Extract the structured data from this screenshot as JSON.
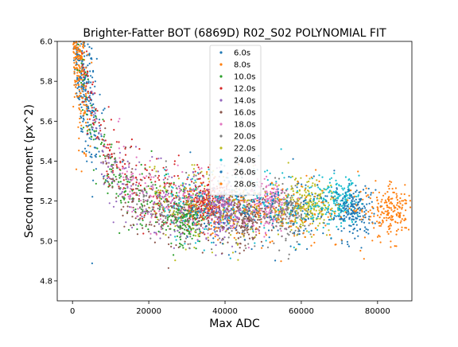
{
  "chart_data": {
    "type": "scatter",
    "title": "Brighter-Fatter BOT (6869D) R02_S02 POLYNOMIAL FIT",
    "xlabel": "Max ADC",
    "ylabel": "Second moment (px^2)",
    "xlim": [
      -4000,
      89000
    ],
    "ylim": [
      4.7,
      6.0
    ],
    "xticks": [
      0,
      20000,
      40000,
      60000,
      80000
    ],
    "xtick_labels": [
      "0",
      "20000",
      "40000",
      "60000",
      "80000"
    ],
    "yticks": [
      4.8,
      5.0,
      5.2,
      5.4,
      5.6,
      5.8,
      6.0
    ],
    "ytick_labels": [
      "4.8",
      "5.0",
      "5.2",
      "5.4",
      "5.6",
      "5.8",
      "6.0"
    ],
    "grid": false,
    "legend_position": "top-center",
    "series": [
      {
        "name": "6.0s",
        "color": "#1f77b4",
        "x_range": [
          0,
          8000
        ],
        "y_center": 5.45
      },
      {
        "name": "8.0s",
        "color": "#ff7f0e",
        "x_range": [
          0,
          4000
        ],
        "y_center": 5.6
      },
      {
        "name": "10.0s",
        "color": "#2ca02c",
        "x_range": [
          1000,
          30000
        ],
        "y_center": 5.12
      },
      {
        "name": "12.0s",
        "color": "#d62728",
        "x_range": [
          2000,
          36000
        ],
        "y_center": 5.2
      },
      {
        "name": "14.0s",
        "color": "#9467bd",
        "x_range": [
          5000,
          40000
        ],
        "y_center": 5.15
      },
      {
        "name": "16.0s",
        "color": "#8c564b",
        "x_range": [
          8000,
          46000
        ],
        "y_center": 5.12
      },
      {
        "name": "18.0s",
        "color": "#e377c2",
        "x_range": [
          12000,
          52000
        ],
        "y_center": 5.18
      },
      {
        "name": "20.0s",
        "color": "#7f7f7f",
        "x_range": [
          16000,
          57000
        ],
        "y_center": 5.14
      },
      {
        "name": "22.0s",
        "color": "#bcbd22",
        "x_range": [
          20000,
          63000
        ],
        "y_center": 5.18
      },
      {
        "name": "24.0s",
        "color": "#17becf",
        "x_range": [
          24000,
          70000
        ],
        "y_center": 5.2
      },
      {
        "name": "26.0s",
        "color": "#1f77b4",
        "x_range": [
          28000,
          74000
        ],
        "y_center": 5.16
      },
      {
        "name": "28.0s",
        "color": "#ff7f0e",
        "x_range": [
          30000,
          84000
        ],
        "y_center": 5.15
      }
    ]
  }
}
